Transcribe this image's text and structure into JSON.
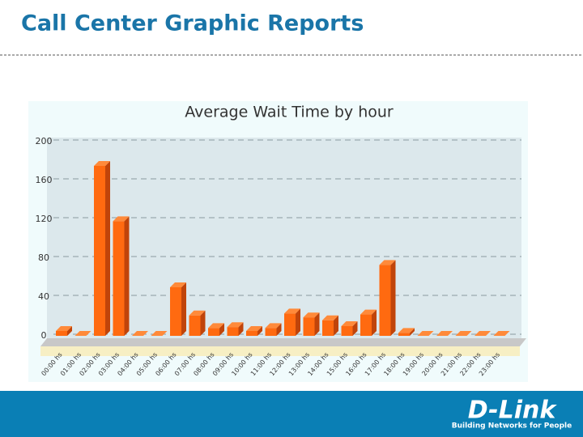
{
  "header": {
    "title": "Call Center Graphic Reports"
  },
  "chart_data": {
    "type": "bar",
    "title": "Average Wait Time by hour",
    "categories": [
      "00:00 hs",
      "01:00 hs",
      "02:00 hs",
      "03:00 hs",
      "04:00 hs",
      "05:00 hs",
      "06:00 hs",
      "07:00 hs",
      "08:00 hs",
      "09:00 hs",
      "10:00 hs",
      "11:00 hs",
      "12:00 hs",
      "13:00 hs",
      "14:00 hs",
      "15:00 hs",
      "16:00 hs",
      "17:00 hs",
      "18:00 hs",
      "19:00 hs",
      "20:00 hs",
      "21:00 hs",
      "22:00 hs",
      "23:00 hs"
    ],
    "values": [
      5,
      0,
      175,
      118,
      0,
      0,
      50,
      21,
      8,
      9,
      5,
      8,
      23,
      19,
      16,
      10,
      22,
      73,
      3,
      0,
      0,
      0,
      0,
      0
    ],
    "color": "#ff6a10",
    "ylim": [
      0,
      200
    ],
    "yticks": [
      0,
      40,
      80,
      120,
      160,
      200
    ],
    "grid": true
  },
  "footer": {
    "logo": "D-Link",
    "tagline": "Building Networks for People"
  }
}
